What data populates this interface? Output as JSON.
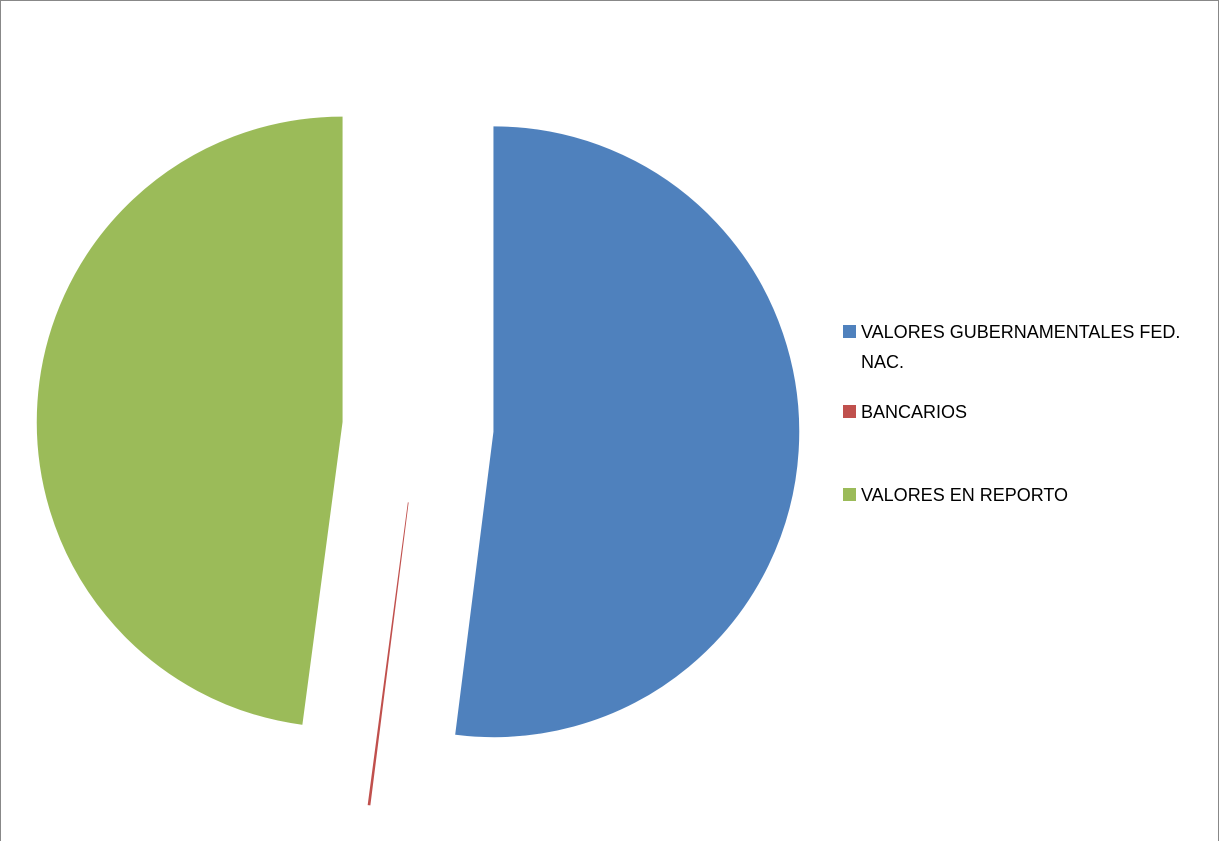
{
  "chart_data": {
    "type": "pie",
    "categories": [
      "VALORES GUBERNAMENTALES FED. NAC.",
      "BANCARIOS",
      "VALORES EN REPORTO"
    ],
    "values": [
      52.0,
      0.1,
      47.9
    ],
    "colors": [
      "#4f81bd",
      "#c0504d",
      "#9bbb59"
    ],
    "legend": "right"
  }
}
